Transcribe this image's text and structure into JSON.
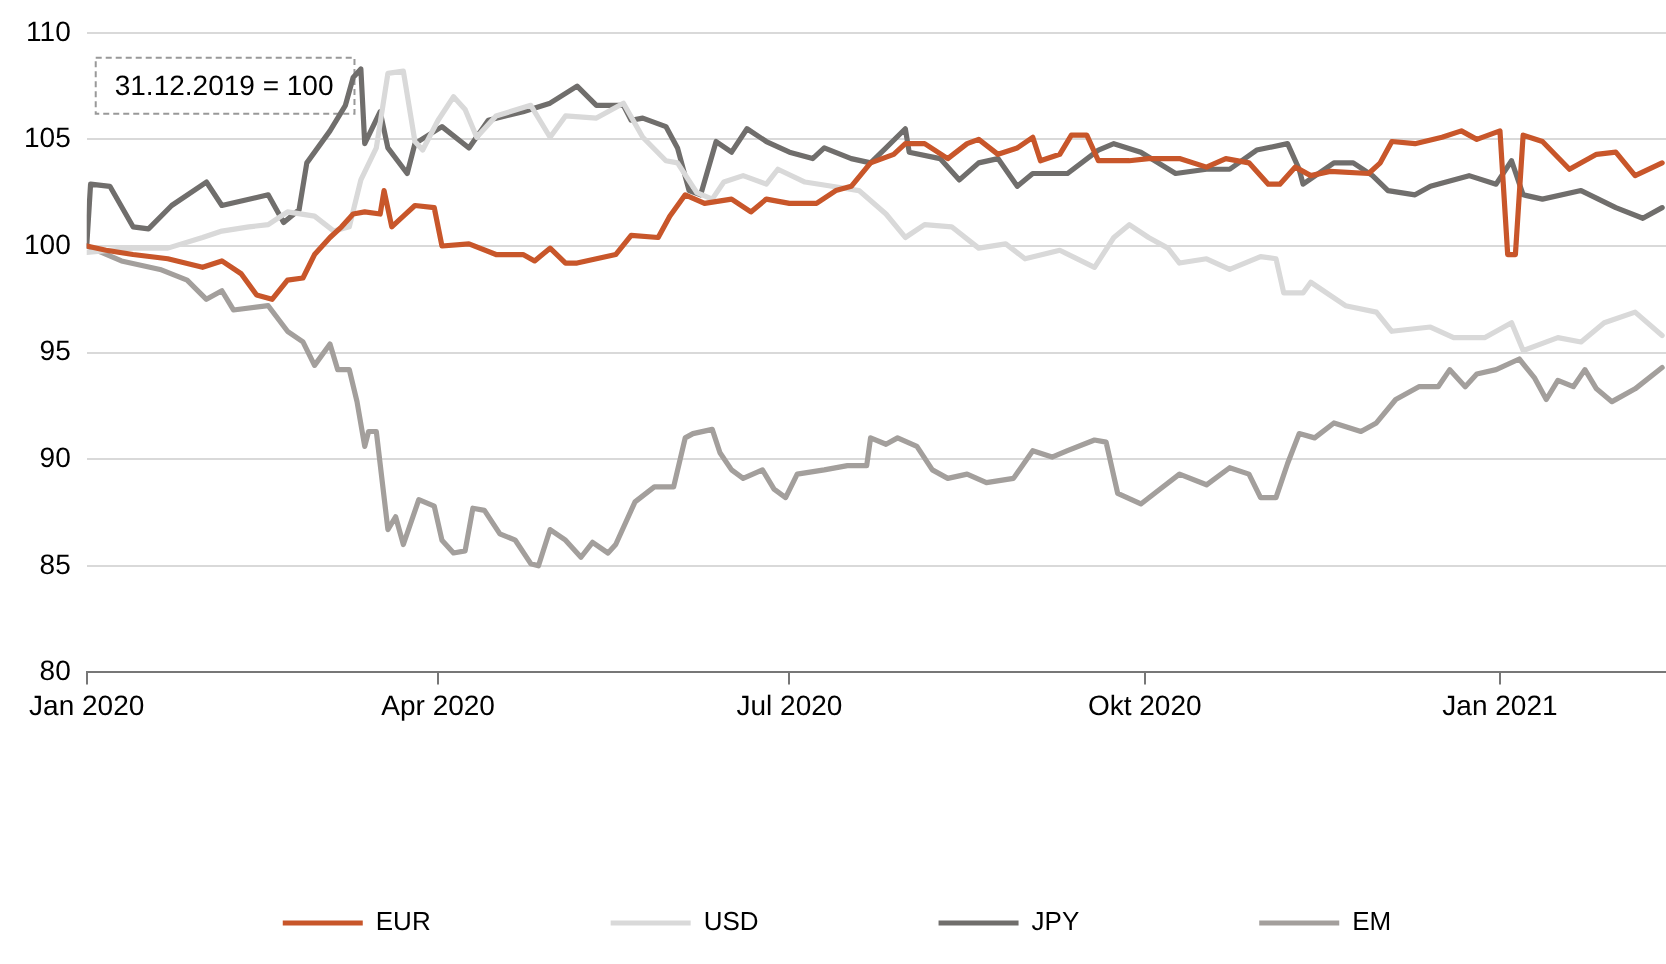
{
  "chart_data": {
    "type": "line",
    "xlim": [
      "2020-01-01",
      "2021-02-13"
    ],
    "ylim": [
      80,
      110
    ],
    "xticks": [
      {
        "value": "2020-01-01",
        "label": "Jan 2020"
      },
      {
        "value": "2020-04-01",
        "label": "Apr 2020"
      },
      {
        "value": "2020-07-01",
        "label": "Jul 2020"
      },
      {
        "value": "2020-10-01",
        "label": "Okt 2020"
      },
      {
        "value": "2021-01-01",
        "label": "Jan 2021"
      }
    ],
    "yticks": [
      80,
      85,
      90,
      95,
      100,
      105,
      110
    ],
    "grid": "y",
    "legend": "bottom",
    "line_style": "solid",
    "annotations": [
      "31.12.2019 = 100"
    ],
    "series": [
      {
        "name": "EUR",
        "color": "#c8562a",
        "x": [
          "2020-01-01",
          "2020-01-06",
          "2020-01-13",
          "2020-01-22",
          "2020-01-31",
          "2020-02-05",
          "2020-02-10",
          "2020-02-14",
          "2020-02-18",
          "2020-02-22",
          "2020-02-26",
          "2020-02-29",
          "2020-03-04",
          "2020-03-07",
          "2020-03-10",
          "2020-03-13",
          "2020-03-17",
          "2020-03-18",
          "2020-03-20",
          "2020-03-23",
          "2020-03-26",
          "2020-03-31",
          "2020-04-02",
          "2020-04-09",
          "2020-04-16",
          "2020-04-23",
          "2020-04-26",
          "2020-04-30",
          "2020-05-04",
          "2020-05-07",
          "2020-05-12",
          "2020-05-17",
          "2020-05-21",
          "2020-05-28",
          "2020-05-31",
          "2020-06-04",
          "2020-06-09",
          "2020-06-16",
          "2020-06-21",
          "2020-06-25",
          "2020-07-01",
          "2020-07-08",
          "2020-07-13",
          "2020-07-17",
          "2020-07-22",
          "2020-07-28",
          "2020-07-31",
          "2020-08-05",
          "2020-08-11",
          "2020-08-16",
          "2020-08-19",
          "2020-08-24",
          "2020-08-29",
          "2020-09-02",
          "2020-09-04",
          "2020-09-09",
          "2020-09-12",
          "2020-09-16",
          "2020-09-19",
          "2020-09-27",
          "2020-10-02",
          "2020-10-10",
          "2020-10-17",
          "2020-10-22",
          "2020-10-28",
          "2020-11-02",
          "2020-11-05",
          "2020-11-09",
          "2020-11-13",
          "2020-11-18",
          "2020-11-28",
          "2020-12-01",
          "2020-12-04",
          "2020-12-10",
          "2020-12-17",
          "2020-12-22",
          "2020-12-26",
          "2021-01-01",
          "2021-01-03",
          "2021-01-05",
          "2021-01-07",
          "2021-01-12",
          "2021-01-19",
          "2021-01-26",
          "2021-01-31",
          "2021-02-05",
          "2021-02-12"
        ],
        "values": [
          100,
          99.8,
          99.6,
          99.4,
          99,
          99.3,
          98.7,
          97.7,
          97.5,
          98.4,
          98.5,
          99.6,
          100.4,
          100.9,
          101.5,
          101.6,
          101.5,
          102.6,
          100.9,
          101.4,
          101.9,
          101.8,
          100,
          100.1,
          99.6,
          99.6,
          99.3,
          99.9,
          99.2,
          99.2,
          99.4,
          99.6,
          100.5,
          100.4,
          101.4,
          102.4,
          102,
          102.2,
          101.6,
          102.2,
          102,
          102,
          102.6,
          102.8,
          103.9,
          104.3,
          104.8,
          104.8,
          104.1,
          104.8,
          105,
          104.3,
          104.6,
          105.1,
          104,
          104.3,
          105.2,
          105.2,
          104,
          104,
          104.1,
          104.1,
          103.7,
          104.1,
          103.9,
          102.9,
          102.9,
          103.7,
          103.3,
          103.5,
          103.4,
          103.9,
          104.9,
          104.8,
          105.1,
          105.4,
          105,
          105.4,
          99.6,
          99.6,
          105.2,
          104.9,
          103.6,
          104.3,
          104.4,
          103.3,
          103.9
        ]
      },
      {
        "name": "USD",
        "color": "#d9d9d9",
        "x": [
          "2020-01-01",
          "2020-01-13",
          "2020-01-22",
          "2020-01-31",
          "2020-02-05",
          "2020-02-12",
          "2020-02-17",
          "2020-02-22",
          "2020-02-29",
          "2020-03-05",
          "2020-03-09",
          "2020-03-12",
          "2020-03-16",
          "2020-03-19",
          "2020-03-23",
          "2020-03-26",
          "2020-03-28",
          "2020-04-01",
          "2020-04-05",
          "2020-04-08",
          "2020-04-11",
          "2020-04-16",
          "2020-04-25",
          "2020-04-30",
          "2020-05-04",
          "2020-05-12",
          "2020-05-19",
          "2020-05-24",
          "2020-05-30",
          "2020-06-02",
          "2020-06-07",
          "2020-06-11",
          "2020-06-14",
          "2020-06-19",
          "2020-06-25",
          "2020-06-28",
          "2020-07-05",
          "2020-07-12",
          "2020-07-19",
          "2020-07-26",
          "2020-07-31",
          "2020-08-05",
          "2020-08-12",
          "2020-08-19",
          "2020-08-26",
          "2020-08-31",
          "2020-09-09",
          "2020-09-18",
          "2020-09-23",
          "2020-09-27",
          "2020-10-02",
          "2020-10-07",
          "2020-10-10",
          "2020-10-17",
          "2020-10-23",
          "2020-10-31",
          "2020-11-04",
          "2020-11-06",
          "2020-11-11",
          "2020-11-13",
          "2020-11-22",
          "2020-11-30",
          "2020-12-04",
          "2020-12-14",
          "2020-12-20",
          "2020-12-28",
          "2021-01-04",
          "2021-01-07",
          "2021-01-16",
          "2021-01-22",
          "2021-01-28",
          "2021-02-05",
          "2021-02-12"
        ],
        "values": [
          99.7,
          99.9,
          99.9,
          100.4,
          100.7,
          100.9,
          101,
          101.6,
          101.4,
          100.7,
          100.9,
          103.1,
          104.6,
          108.1,
          108.2,
          104.9,
          104.5,
          105.9,
          107,
          106.4,
          105.1,
          106.1,
          106.6,
          105.1,
          106.1,
          106,
          106.7,
          105.1,
          104,
          103.9,
          102.5,
          102.2,
          103,
          103.3,
          102.9,
          103.6,
          103,
          102.8,
          102.6,
          101.5,
          100.4,
          101,
          100.9,
          99.9,
          100.1,
          99.4,
          99.8,
          99,
          100.4,
          101,
          100.4,
          99.9,
          99.2,
          99.4,
          98.9,
          99.5,
          99.4,
          97.8,
          97.8,
          98.3,
          97.2,
          96.9,
          96,
          96.2,
          95.7,
          95.7,
          96.4,
          95.1,
          95.7,
          95.5,
          96.4,
          96.9,
          95.8
        ]
      },
      {
        "name": "JPY",
        "color": "#706e6c",
        "x": [
          "2020-01-01",
          "2020-01-02",
          "2020-01-07",
          "2020-01-13",
          "2020-01-17",
          "2020-01-23",
          "2020-02-01",
          "2020-02-05",
          "2020-02-17",
          "2020-02-21",
          "2020-02-25",
          "2020-02-27",
          "2020-03-04",
          "2020-03-08",
          "2020-03-10",
          "2020-03-12",
          "2020-03-13",
          "2020-03-17",
          "2020-03-19",
          "2020-03-24",
          "2020-03-26",
          "2020-04-02",
          "2020-04-09",
          "2020-04-14",
          "2020-04-23",
          "2020-04-30",
          "2020-05-07",
          "2020-05-12",
          "2020-05-19",
          "2020-05-21",
          "2020-05-24",
          "2020-05-30",
          "2020-06-02",
          "2020-06-05",
          "2020-06-08",
          "2020-06-12",
          "2020-06-16",
          "2020-06-20",
          "2020-06-25",
          "2020-07-01",
          "2020-07-07",
          "2020-07-10",
          "2020-07-17",
          "2020-07-22",
          "2020-07-26",
          "2020-07-31",
          "2020-08-01",
          "2020-08-09",
          "2020-08-14",
          "2020-08-19",
          "2020-08-24",
          "2020-08-29",
          "2020-09-02",
          "2020-09-11",
          "2020-09-19",
          "2020-09-23",
          "2020-09-30",
          "2020-10-09",
          "2020-10-17",
          "2020-10-23",
          "2020-10-30",
          "2020-11-07",
          "2020-11-10",
          "2020-11-11",
          "2020-11-19",
          "2020-11-24",
          "2020-11-29",
          "2020-12-03",
          "2020-12-10",
          "2020-12-14",
          "2020-12-24",
          "2020-12-31",
          "2021-01-04",
          "2021-01-07",
          "2021-01-12",
          "2021-01-22",
          "2021-01-31",
          "2021-02-07",
          "2021-02-12"
        ],
        "values": [
          100,
          102.9,
          102.8,
          100.9,
          100.8,
          101.9,
          103,
          101.9,
          102.4,
          101.1,
          101.7,
          103.9,
          105.4,
          106.6,
          107.9,
          108.3,
          104.8,
          106.3,
          104.6,
          103.4,
          104.8,
          105.6,
          104.6,
          105.9,
          106.3,
          106.7,
          107.5,
          106.6,
          106.6,
          105.9,
          106,
          105.6,
          104.6,
          102.6,
          102.4,
          104.9,
          104.4,
          105.5,
          104.9,
          104.4,
          104.1,
          104.6,
          104.1,
          103.9,
          104.6,
          105.5,
          104.4,
          104.1,
          103.1,
          103.9,
          104.1,
          102.8,
          103.4,
          103.4,
          104.5,
          104.8,
          104.4,
          103.4,
          103.6,
          103.6,
          104.5,
          104.8,
          103.6,
          102.9,
          103.9,
          103.9,
          103.3,
          102.6,
          102.4,
          102.8,
          103.3,
          102.9,
          104,
          102.4,
          102.2,
          102.6,
          101.8,
          101.3,
          101.8
        ]
      },
      {
        "name": "EM",
        "color": "#a39f9c",
        "x": [
          "2020-01-01",
          "2020-01-10",
          "2020-01-20",
          "2020-01-27",
          "2020-02-01",
          "2020-02-05",
          "2020-02-08",
          "2020-02-17",
          "2020-02-22",
          "2020-02-26",
          "2020-02-29",
          "2020-03-04",
          "2020-03-06",
          "2020-03-09",
          "2020-03-11",
          "2020-03-13",
          "2020-03-14",
          "2020-03-16",
          "2020-03-19",
          "2020-03-21",
          "2020-03-23",
          "2020-03-27",
          "2020-03-31",
          "2020-04-02",
          "2020-04-05",
          "2020-04-08",
          "2020-04-10",
          "2020-04-13",
          "2020-04-17",
          "2020-04-21",
          "2020-04-25",
          "2020-04-27",
          "2020-04-30",
          "2020-05-04",
          "2020-05-08",
          "2020-05-11",
          "2020-05-15",
          "2020-05-17",
          "2020-05-22",
          "2020-05-27",
          "2020-06-01",
          "2020-06-04",
          "2020-06-06",
          "2020-06-11",
          "2020-06-13",
          "2020-06-16",
          "2020-06-19",
          "2020-06-24",
          "2020-06-27",
          "2020-06-30",
          "2020-07-03",
          "2020-07-10",
          "2020-07-16",
          "2020-07-21",
          "2020-07-22",
          "2020-07-26",
          "2020-07-29",
          "2020-08-03",
          "2020-08-07",
          "2020-08-11",
          "2020-08-16",
          "2020-08-21",
          "2020-08-28",
          "2020-09-02",
          "2020-09-07",
          "2020-09-11",
          "2020-09-18",
          "2020-09-21",
          "2020-09-24",
          "2020-09-30",
          "2020-10-05",
          "2020-10-10",
          "2020-10-17",
          "2020-10-23",
          "2020-10-28",
          "2020-10-31",
          "2020-11-04",
          "2020-11-07",
          "2020-11-10",
          "2020-11-14",
          "2020-11-19",
          "2020-11-26",
          "2020-11-30",
          "2020-12-05",
          "2020-12-11",
          "2020-12-16",
          "2020-12-19",
          "2020-12-23",
          "2020-12-26",
          "2020-12-31",
          "2021-01-06",
          "2021-01-10",
          "2021-01-13",
          "2021-01-16",
          "2021-01-20",
          "2021-01-23",
          "2021-01-26",
          "2021-01-30",
          "2021-02-05",
          "2021-02-12"
        ],
        "values": [
          100,
          99.3,
          98.9,
          98.4,
          97.5,
          97.9,
          97,
          97.2,
          96,
          95.5,
          94.4,
          95.4,
          94.2,
          94.2,
          92.7,
          90.6,
          91.3,
          91.3,
          86.7,
          87.3,
          86,
          88.1,
          87.8,
          86.2,
          85.6,
          85.7,
          87.7,
          87.6,
          86.5,
          86.2,
          85.1,
          85,
          86.7,
          86.2,
          85.4,
          86.1,
          85.6,
          86,
          88,
          88.7,
          88.7,
          91,
          91.2,
          91.4,
          90.3,
          89.5,
          89.1,
          89.5,
          88.6,
          88.2,
          89.3,
          89.5,
          89.7,
          89.7,
          91,
          90.7,
          91,
          90.6,
          89.5,
          89.1,
          89.3,
          88.9,
          89.1,
          90.4,
          90.1,
          90.4,
          90.9,
          90.8,
          88.4,
          87.9,
          88.6,
          89.3,
          88.8,
          89.6,
          89.3,
          88.2,
          88.2,
          89.8,
          91.2,
          91,
          91.7,
          91.3,
          91.7,
          92.8,
          93.4,
          93.4,
          94.2,
          93.4,
          94,
          94.2,
          94.7,
          93.8,
          92.8,
          93.7,
          93.4,
          94.2,
          93.3,
          92.7,
          93.3,
          94.3
        ]
      }
    ]
  }
}
